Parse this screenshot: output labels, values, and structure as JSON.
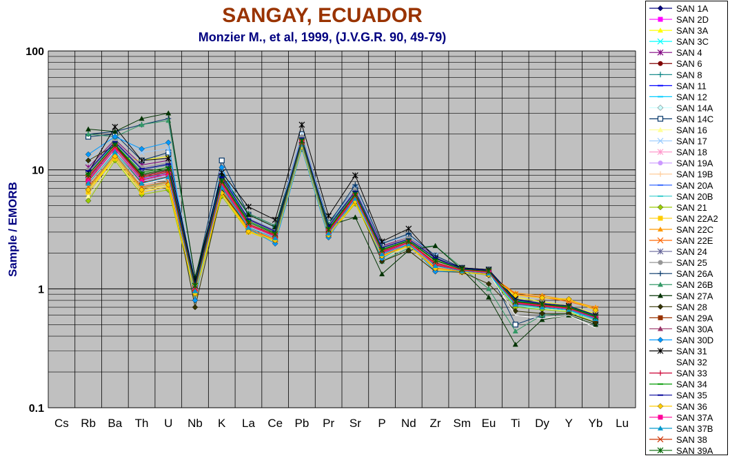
{
  "chart_data": {
    "type": "line",
    "title": "SANGAY, ECUADOR",
    "subtitle": "Monzier M., et al, 1999, (J.V.G.R. 90, 49-79)",
    "xlabel": "",
    "ylabel": "Sample / EMORB",
    "yscale": "log",
    "ylim": [
      0.1,
      100
    ],
    "yticks": [
      "0.1",
      "1",
      "10",
      "100"
    ],
    "grid": true,
    "legend_position": "right",
    "categories": [
      "Cs",
      "Rb",
      "Ba",
      "Th",
      "U",
      "Nb",
      "K",
      "La",
      "Ce",
      "Pb",
      "Pr",
      "Sr",
      "P",
      "Nd",
      "Zr",
      "Sm",
      "Eu",
      "Ti",
      "Dy",
      "Y",
      "Yb",
      "Lu"
    ],
    "series": [
      {
        "name": "SAN 1A",
        "color": "#000080",
        "marker": "diamond",
        "values": [
          null,
          10,
          17,
          10,
          11,
          1.1,
          8.5,
          3.8,
          3.0,
          18,
          3.3,
          6.5,
          2.2,
          2.6,
          1.8,
          1.45,
          1.4,
          0.75,
          0.72,
          0.7,
          0.6,
          null
        ]
      },
      {
        "name": "SAN 2D",
        "color": "#FF00FF",
        "marker": "square",
        "values": [
          null,
          8.5,
          16,
          9,
          10,
          1.0,
          7.5,
          3.5,
          2.8,
          17,
          3.1,
          6.0,
          2.0,
          2.5,
          1.7,
          1.45,
          1.4,
          0.8,
          0.75,
          0.72,
          0.6,
          null
        ]
      },
      {
        "name": "SAN 3A",
        "color": "#FFFF00",
        "marker": "triangle",
        "values": [
          null,
          6.5,
          13,
          12,
          13,
          0.95,
          6.5,
          3.2,
          2.6,
          16,
          2.9,
          5.5,
          1.9,
          2.4,
          1.5,
          1.4,
          1.35,
          0.85,
          0.78,
          0.72,
          0.62,
          null
        ]
      },
      {
        "name": "SAN 3C",
        "color": "#00FFFF",
        "marker": "x",
        "values": [
          null,
          9,
          17,
          10,
          11,
          1.1,
          8,
          3.6,
          2.9,
          17,
          3.1,
          6.2,
          2.1,
          2.5,
          1.7,
          1.45,
          1.4,
          0.78,
          0.72,
          0.7,
          0.58,
          null
        ]
      },
      {
        "name": "SAN 4",
        "color": "#800080",
        "marker": "star",
        "values": [
          null,
          10.5,
          18,
          11,
          12,
          1.15,
          9,
          3.9,
          3.1,
          19,
          3.4,
          6.8,
          2.3,
          2.7,
          1.9,
          1.5,
          1.45,
          0.8,
          0.75,
          0.72,
          0.6,
          null
        ]
      },
      {
        "name": "SAN 6",
        "color": "#800000",
        "marker": "circle",
        "values": [
          null,
          9,
          16,
          8.5,
          9,
          1.05,
          8,
          3.5,
          2.8,
          17,
          3.1,
          6.0,
          2.1,
          2.5,
          1.6,
          1.45,
          1.4,
          0.75,
          0.72,
          0.7,
          0.58,
          null
        ]
      },
      {
        "name": "SAN 8",
        "color": "#008080",
        "marker": "plus",
        "values": [
          null,
          8,
          15,
          8,
          9,
          1.0,
          7.5,
          3.3,
          2.7,
          16,
          3.0,
          5.8,
          2.0,
          2.4,
          1.6,
          1.4,
          1.35,
          0.75,
          0.72,
          0.68,
          0.56,
          null
        ]
      },
      {
        "name": "SAN 11",
        "color": "#0000FF",
        "marker": "dash",
        "values": [
          null,
          7.5,
          14,
          7.5,
          8.5,
          0.95,
          7,
          3.2,
          2.6,
          16,
          2.9,
          5.6,
          1.9,
          2.4,
          1.55,
          1.4,
          1.35,
          0.72,
          0.7,
          0.66,
          0.55,
          null
        ]
      },
      {
        "name": "SAN 12",
        "color": "#00CCFF",
        "marker": "dash",
        "values": [
          null,
          7,
          14,
          7,
          8,
          0.9,
          6.5,
          3.1,
          2.5,
          15,
          2.8,
          5.4,
          1.9,
          2.3,
          1.5,
          1.4,
          1.3,
          0.7,
          0.68,
          0.65,
          0.55,
          null
        ]
      },
      {
        "name": "SAN 14A",
        "color": "#CCFFFF",
        "marker": "diamond",
        "values": [
          null,
          8,
          15,
          8.5,
          9,
          1.0,
          7.5,
          3.4,
          2.7,
          17,
          3.0,
          5.8,
          2.0,
          2.4,
          1.6,
          1.42,
          1.38,
          0.72,
          0.7,
          0.68,
          0.56,
          null
        ]
      },
      {
        "name": "SAN 14C",
        "color": "#003366",
        "marker": "square-open",
        "values": [
          null,
          19,
          20,
          12,
          14,
          1.2,
          12,
          4.2,
          3.3,
          20,
          3.6,
          7.0,
          2.4,
          2.8,
          1.9,
          1.5,
          1.45,
          0.5,
          0.6,
          0.62,
          0.52,
          null
        ]
      },
      {
        "name": "SAN 16",
        "color": "#FFFF99",
        "marker": "triangle",
        "values": [
          null,
          6,
          12,
          6.5,
          7.5,
          0.9,
          6,
          3.0,
          2.5,
          15,
          2.8,
          5.2,
          1.8,
          2.3,
          1.45,
          1.38,
          1.3,
          0.72,
          0.68,
          0.65,
          0.52,
          null
        ]
      },
      {
        "name": "SAN 17",
        "color": "#99CCFF",
        "marker": "x",
        "values": [
          null,
          12,
          20,
          14,
          15,
          1.2,
          10,
          4.0,
          3.2,
          20,
          3.5,
          7.0,
          2.4,
          2.8,
          1.9,
          1.5,
          1.45,
          0.8,
          0.75,
          0.72,
          0.6,
          null
        ]
      },
      {
        "name": "SAN 18",
        "color": "#FF99CC",
        "marker": "star",
        "values": [
          null,
          9,
          16,
          9,
          10,
          1.05,
          8,
          3.6,
          2.9,
          18,
          3.2,
          6.2,
          2.1,
          2.5,
          1.7,
          1.45,
          1.4,
          0.78,
          0.74,
          0.7,
          0.58,
          null
        ]
      },
      {
        "name": "SAN 19A",
        "color": "#CC99FF",
        "marker": "circle",
        "values": [
          null,
          8,
          15,
          8,
          9,
          1.0,
          7.5,
          3.4,
          2.8,
          17,
          3.0,
          5.9,
          2.0,
          2.4,
          1.6,
          1.42,
          1.38,
          0.76,
          0.72,
          0.68,
          0.57,
          null
        ]
      },
      {
        "name": "SAN 19B",
        "color": "#FFCC99",
        "marker": "plus",
        "values": [
          null,
          7.5,
          14,
          7.5,
          8.5,
          0.95,
          7,
          3.3,
          2.7,
          16,
          2.9,
          5.7,
          1.95,
          2.35,
          1.55,
          1.4,
          1.35,
          0.74,
          0.7,
          0.67,
          0.56,
          null
        ]
      },
      {
        "name": "SAN 20A",
        "color": "#3366FF",
        "marker": "dash",
        "values": [
          null,
          8.5,
          15.5,
          8.5,
          9.5,
          1.0,
          7.8,
          3.5,
          2.8,
          17,
          3.1,
          6.0,
          2.05,
          2.45,
          1.65,
          1.44,
          1.4,
          0.76,
          0.72,
          0.69,
          0.57,
          null
        ]
      },
      {
        "name": "SAN 20B",
        "color": "#33CCCC",
        "marker": "dash",
        "values": [
          null,
          7,
          13.5,
          7,
          8,
          0.92,
          6.8,
          3.2,
          2.6,
          16,
          2.85,
          5.5,
          1.9,
          2.35,
          1.5,
          1.4,
          1.32,
          0.72,
          0.69,
          0.66,
          0.55,
          null
        ]
      },
      {
        "name": "SAN 21",
        "color": "#99CC00",
        "marker": "diamond",
        "values": [
          null,
          5.5,
          12,
          6.2,
          6.8,
          0.88,
          6,
          3.0,
          2.5,
          15,
          2.8,
          5.2,
          1.85,
          2.3,
          1.45,
          1.38,
          1.3,
          0.7,
          0.67,
          0.64,
          0.52,
          null
        ]
      },
      {
        "name": "SAN 22A2",
        "color": "#FFCC00",
        "marker": "square",
        "values": [
          null,
          6.5,
          12.5,
          6.5,
          7.2,
          0.9,
          6.3,
          3.0,
          2.5,
          15.5,
          2.8,
          5.3,
          1.85,
          2.3,
          1.45,
          1.38,
          1.32,
          0.9,
          0.85,
          0.8,
          0.68,
          null
        ]
      },
      {
        "name": "SAN 22C",
        "color": "#FF9900",
        "marker": "triangle",
        "values": [
          null,
          7,
          13,
          7,
          7.8,
          0.92,
          6.6,
          3.1,
          2.6,
          16,
          2.85,
          5.5,
          1.9,
          2.35,
          1.5,
          1.4,
          1.33,
          0.92,
          0.88,
          0.8,
          0.7,
          null
        ]
      },
      {
        "name": "SAN 22E",
        "color": "#FF6600",
        "marker": "x",
        "values": [
          null,
          7.2,
          13.5,
          7.2,
          8,
          0.93,
          6.8,
          3.2,
          2.6,
          16,
          2.9,
          5.6,
          1.9,
          2.35,
          1.5,
          1.4,
          1.34,
          0.9,
          0.85,
          0.78,
          0.68,
          null
        ]
      },
      {
        "name": "SAN 24",
        "color": "#666699",
        "marker": "star",
        "values": [
          null,
          9.5,
          17,
          10,
          11,
          1.1,
          8.5,
          3.8,
          3.0,
          18,
          3.3,
          6.5,
          2.2,
          2.6,
          1.8,
          1.47,
          1.42,
          0.8,
          0.75,
          0.72,
          0.6,
          null
        ]
      },
      {
        "name": "SAN 25",
        "color": "#969696",
        "marker": "circle",
        "values": [
          null,
          10,
          17.5,
          10.5,
          11.5,
          1.12,
          9,
          3.9,
          3.1,
          19,
          3.4,
          6.8,
          2.25,
          2.7,
          1.85,
          1.5,
          1.45,
          0.82,
          0.76,
          0.72,
          0.6,
          null
        ]
      },
      {
        "name": "SAN 26A",
        "color": "#003366",
        "marker": "plus",
        "values": [
          null,
          20,
          21,
          24,
          27,
          1.25,
          9,
          4.3,
          3.4,
          17,
          3.5,
          7.5,
          2.4,
          2.9,
          1.9,
          1.5,
          1.45,
          0.78,
          0.72,
          0.7,
          0.58,
          null
        ]
      },
      {
        "name": "SAN 26B",
        "color": "#339966",
        "marker": "triangle",
        "values": [
          null,
          20,
          19,
          24,
          26,
          1.25,
          9,
          4.3,
          3.4,
          17,
          3.5,
          6.5,
          1.7,
          2.2,
          2.3,
          1.5,
          1.0,
          0.44,
          0.6,
          0.62,
          0.52,
          null
        ]
      },
      {
        "name": "SAN 27A",
        "color": "#003300",
        "marker": "triangle",
        "values": [
          null,
          22,
          21,
          27,
          30,
          1.25,
          9,
          4.2,
          3.3,
          17,
          3.4,
          4.0,
          1.33,
          2.1,
          2.3,
          1.45,
          0.85,
          0.34,
          0.55,
          0.6,
          0.5,
          null
        ]
      },
      {
        "name": "SAN 28",
        "color": "#333300",
        "marker": "diamond",
        "values": [
          null,
          12,
          16,
          9,
          10,
          0.7,
          6.5,
          3.3,
          2.7,
          16,
          3.0,
          5.6,
          1.7,
          2.1,
          1.4,
          1.38,
          1.1,
          0.65,
          0.62,
          0.62,
          0.52,
          null
        ]
      },
      {
        "name": "SAN 29A",
        "color": "#993300",
        "marker": "square",
        "values": [
          null,
          8,
          14.5,
          7.8,
          8.8,
          0.96,
          7.2,
          3.3,
          2.7,
          16.5,
          2.95,
          5.8,
          1.95,
          2.4,
          1.58,
          1.42,
          1.36,
          0.74,
          0.71,
          0.68,
          0.56,
          null
        ]
      },
      {
        "name": "SAN 30A",
        "color": "#993366",
        "marker": "triangle",
        "values": [
          null,
          8.3,
          15,
          8.2,
          9.2,
          0.98,
          7.4,
          3.4,
          2.75,
          16.8,
          3.0,
          5.9,
          2.0,
          2.42,
          1.6,
          1.43,
          1.37,
          0.75,
          0.72,
          0.68,
          0.57,
          null
        ]
      },
      {
        "name": "SAN 30D",
        "color": "#0099FF",
        "marker": "diamond",
        "values": [
          null,
          13.5,
          19,
          15,
          17,
          0.8,
          10.5,
          3.2,
          2.4,
          15,
          2.7,
          5.7,
          1.8,
          2.4,
          1.4,
          1.4,
          1.3,
          0.8,
          0.74,
          0.7,
          0.58,
          null
        ]
      },
      {
        "name": "SAN 31",
        "color": "#000000",
        "marker": "star",
        "values": [
          null,
          9.5,
          23,
          12,
          12.5,
          1.15,
          9.5,
          4.9,
          3.8,
          24,
          4.1,
          9.0,
          2.5,
          3.2,
          1.8,
          1.5,
          1.45,
          0.82,
          0.75,
          0.72,
          0.6,
          null
        ]
      },
      {
        "name": "SAN 32",
        "color": "#FFFFFF",
        "marker": "none",
        "values": [
          null,
          7.8,
          14.5,
          7.6,
          8.5,
          0.95,
          7.1,
          3.3,
          2.7,
          16.3,
          2.92,
          5.7,
          1.95,
          2.4,
          1.56,
          1.41,
          1.35,
          0.6,
          0.56,
          0.6,
          0.47,
          null
        ]
      },
      {
        "name": "SAN 33",
        "color": "#CC0033",
        "marker": "plus",
        "values": [
          null,
          8.8,
          15.8,
          8.8,
          9.8,
          1.02,
          7.9,
          3.5,
          2.85,
          17.2,
          3.1,
          6.1,
          2.08,
          2.47,
          1.66,
          1.44,
          1.39,
          0.77,
          0.73,
          0.69,
          0.58,
          null
        ]
      },
      {
        "name": "SAN 34",
        "color": "#009900",
        "marker": "dash",
        "values": [
          null,
          9.2,
          16.5,
          9.5,
          10.5,
          1.08,
          8.2,
          3.7,
          2.95,
          17.8,
          3.2,
          6.3,
          2.15,
          2.55,
          1.75,
          1.46,
          1.41,
          0.79,
          0.74,
          0.71,
          0.59,
          null
        ]
      },
      {
        "name": "SAN 35",
        "color": "#000099",
        "marker": "dash",
        "values": [
          null,
          9.8,
          17.2,
          10.2,
          11.2,
          1.1,
          8.7,
          3.85,
          3.05,
          18.5,
          3.35,
          6.6,
          2.22,
          2.62,
          1.82,
          1.48,
          1.43,
          0.81,
          0.75,
          0.72,
          0.6,
          null
        ]
      },
      {
        "name": "SAN 36",
        "color": "#FFCC00",
        "marker": "diamond",
        "values": [
          null,
          6.8,
          13,
          6.8,
          7.5,
          0.91,
          6.4,
          3.05,
          2.55,
          15.5,
          2.82,
          5.4,
          1.88,
          2.32,
          1.48,
          1.39,
          1.31,
          0.88,
          0.84,
          0.82,
          0.66,
          null
        ]
      },
      {
        "name": "SAN 37A",
        "color": "#FF0099",
        "marker": "square",
        "values": [
          null,
          8.2,
          15,
          8.3,
          9.3,
          0.99,
          7.5,
          3.42,
          2.77,
          16.9,
          3.02,
          5.95,
          2.02,
          2.43,
          1.61,
          1.43,
          1.37,
          0.76,
          0.72,
          0.68,
          0.57,
          null
        ]
      },
      {
        "name": "SAN 37B",
        "color": "#0099CC",
        "marker": "triangle",
        "values": [
          null,
          7.7,
          14.2,
          7.7,
          8.7,
          0.96,
          7.1,
          3.28,
          2.68,
          16.4,
          2.93,
          5.75,
          1.96,
          2.38,
          1.56,
          1.41,
          1.35,
          0.74,
          0.7,
          0.67,
          0.56,
          null
        ]
      },
      {
        "name": "SAN 38",
        "color": "#CC3300",
        "marker": "x",
        "values": [
          null,
          8.6,
          15.6,
          8.6,
          9.6,
          1.01,
          7.8,
          3.48,
          2.82,
          17.1,
          3.08,
          6.05,
          2.06,
          2.46,
          1.64,
          1.44,
          1.39,
          0.77,
          0.73,
          0.69,
          0.58,
          null
        ]
      },
      {
        "name": "SAN 39A",
        "color": "#006600",
        "marker": "star",
        "values": [
          null,
          9.1,
          16.3,
          9.2,
          10.2,
          1.06,
          8.1,
          3.62,
          2.9,
          17.6,
          3.15,
          6.25,
          2.12,
          2.52,
          1.72,
          1.46,
          1.41,
          0.78,
          0.74,
          0.7,
          0.58,
          null
        ]
      }
    ]
  }
}
